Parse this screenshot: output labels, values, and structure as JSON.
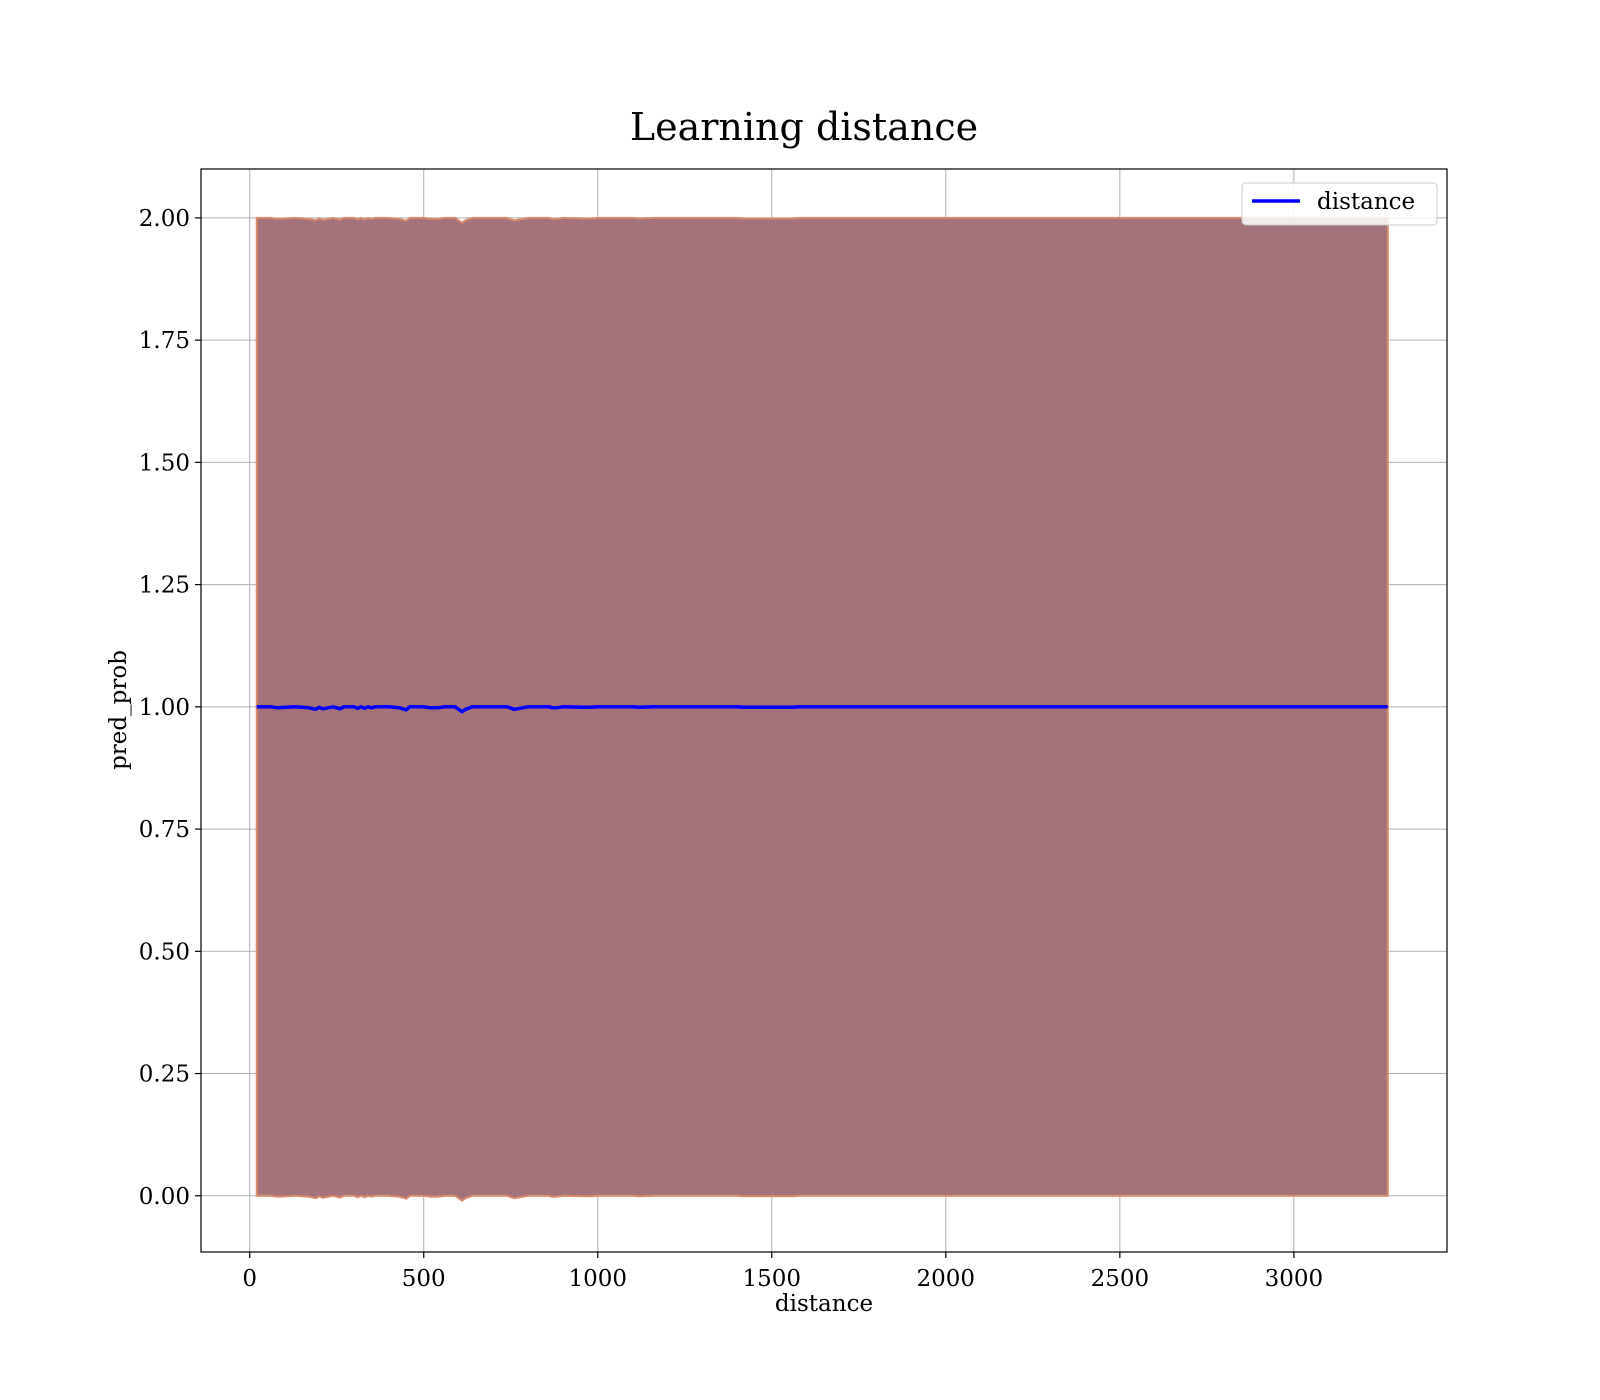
{
  "chart_data": {
    "type": "line",
    "title": "Learning distance",
    "xlabel": "distance",
    "ylabel": "pred_prob",
    "xlim": [
      -140,
      3440
    ],
    "ylim": [
      -0.115,
      2.1
    ],
    "xticks": [
      0,
      500,
      1000,
      1500,
      2000,
      2500,
      3000
    ],
    "xtick_labels": [
      "0",
      "500",
      "1000",
      "1500",
      "2000",
      "2500",
      "3000"
    ],
    "yticks": [
      0.0,
      0.25,
      0.5,
      0.75,
      1.0,
      1.25,
      1.5,
      1.75,
      2.0
    ],
    "ytick_labels": [
      "0.00",
      "0.25",
      "0.50",
      "0.75",
      "1.00",
      "1.25",
      "1.50",
      "1.75",
      "2.00"
    ],
    "grid": true,
    "legend": {
      "position": "top-right",
      "entries": [
        "distance"
      ]
    },
    "series": [
      {
        "name": "distance",
        "color": "#0000ff",
        "x": [
          20,
          60,
          80,
          130,
          170,
          190,
          200,
          210,
          240,
          260,
          270,
          300,
          310,
          320,
          330,
          340,
          350,
          360,
          400,
          430,
          450,
          460,
          500,
          520,
          540,
          560,
          590,
          600,
          610,
          620,
          640,
          680,
          740,
          760,
          800,
          860,
          870,
          880,
          900,
          960,
          980,
          1000,
          1100,
          1120,
          1160,
          1400,
          1420,
          1560,
          1580,
          2000,
          2500,
          3000,
          3270
        ],
        "y": [
          1.0,
          1.0,
          0.998,
          1.0,
          0.998,
          0.995,
          0.999,
          0.996,
          1.0,
          0.996,
          1.0,
          1.0,
          0.997,
          1.0,
          0.997,
          1.0,
          0.998,
          1.0,
          1.0,
          0.998,
          0.994,
          1.0,
          1.0,
          0.998,
          0.998,
          1.0,
          1.0,
          0.995,
          0.99,
          0.995,
          1.0,
          1.0,
          1.0,
          0.995,
          1.0,
          1.0,
          0.998,
          0.998,
          1.0,
          0.999,
          0.999,
          1.0,
          1.0,
          0.999,
          1.0,
          1.0,
          0.999,
          0.999,
          1.0,
          1.0,
          1.0,
          1.0,
          1.0
        ]
      }
    ],
    "band": {
      "fill_color": "#a3727b",
      "edge_color": "#d98c6a",
      "lower_offset": 1.0,
      "upper_offset": 1.0
    }
  }
}
